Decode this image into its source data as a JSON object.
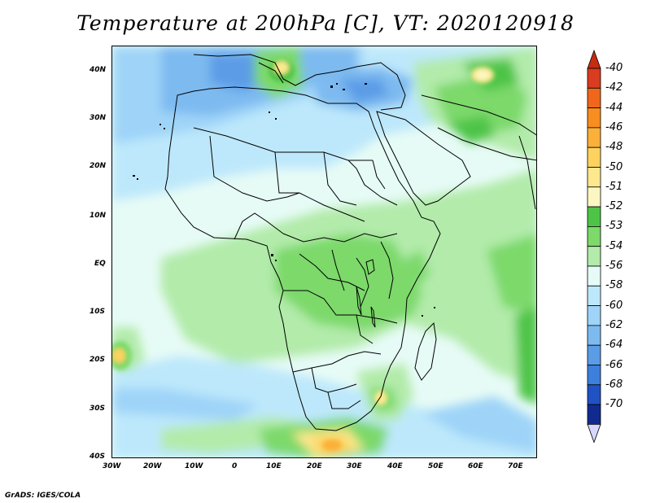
{
  "title": "Temperature at 200hPa [C], VT: 2020120918",
  "credit": "GrADS: IGES/COLA",
  "lat_labels": [
    "40N",
    "30N",
    "20N",
    "10N",
    "EQ",
    "10S",
    "20S",
    "30S",
    "40S"
  ],
  "lon_labels": [
    "30W",
    "20W",
    "10W",
    "0",
    "10E",
    "20E",
    "30E",
    "40E",
    "50E",
    "60E",
    "70E"
  ],
  "colorbar": {
    "labels": [
      "-40",
      "-42",
      "-44",
      "-46",
      "-48",
      "-50",
      "-51",
      "-52",
      "-53",
      "-54",
      "-56",
      "-58",
      "-60",
      "-62",
      "-64",
      "-66",
      "-68",
      "-70"
    ],
    "colors": [
      "#d93c1f",
      "#f0671c",
      "#f88e1f",
      "#fbb039",
      "#fdd25e",
      "#fde88e",
      "#fcf7c2",
      "#4ec447",
      "#7cd96a",
      "#b2ebaa",
      "#e6fbf6",
      "#bde8fb",
      "#9fd4f8",
      "#7dbaf0",
      "#5b9ce6",
      "#3d7fdc",
      "#2052c4",
      "#112a8f"
    ],
    "top_arrow_color": "#c62c12",
    "bottom_arrow_color": "#d8d7ff"
  }
}
